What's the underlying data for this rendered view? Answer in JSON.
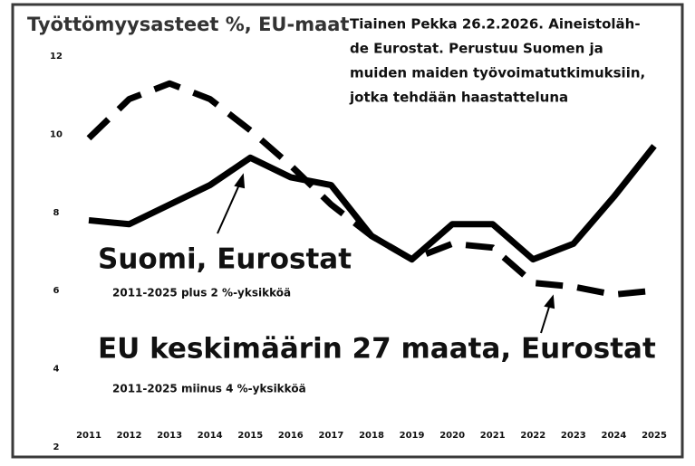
{
  "chart_data": {
    "type": "line",
    "title": "Työttömyysasteet %, EU-maat",
    "note": [
      "Tiainen Pekka 26.2.2026. Aineistoläh-",
      "de Eurostat. Perustuu Suomen ja",
      "muiden maiden työvoimatutkimuksiin,",
      "jotka tehdään haastatteluna"
    ],
    "categories": [
      "2011",
      "2012",
      "2013",
      "2014",
      "2015",
      "2016",
      "2017",
      "2018",
      "2019",
      "2020",
      "2021",
      "2022",
      "2023",
      "2024",
      "2025"
    ],
    "series": [
      {
        "name": "Suomi, Eurostat",
        "subtitle": "2011-2025 plus 2 %-yksikköä",
        "color": "#000000",
        "dashed": false,
        "values": [
          7.8,
          7.7,
          8.2,
          8.7,
          9.4,
          8.9,
          8.7,
          7.4,
          6.8,
          7.7,
          7.7,
          6.8,
          7.2,
          8.4,
          9.7
        ]
      },
      {
        "name": "EU keskimäärin 27 maata, Eurostat",
        "subtitle": "2011-2025 miinus 4 %-yksikköä",
        "color": "#000000",
        "dashed": true,
        "values": [
          9.9,
          10.9,
          11.3,
          10.9,
          10.1,
          9.2,
          8.2,
          7.4,
          6.8,
          7.2,
          7.1,
          6.2,
          6.1,
          5.9,
          6.0
        ]
      }
    ],
    "ylim": [
      2,
      12
    ],
    "yticks": [
      2,
      4,
      6,
      8,
      10,
      12
    ],
    "grid": false
  }
}
